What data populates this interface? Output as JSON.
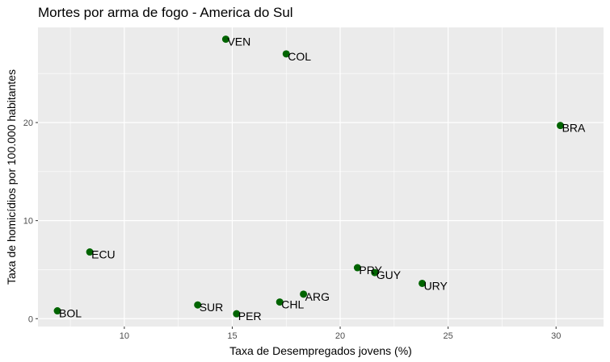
{
  "chart_data": {
    "type": "scatter",
    "title": "Mortes por arma de fogo - America do Sul",
    "xlabel": "Taxa de Desempregados jovens (%)",
    "ylabel": "Taxa de homicídios por 100.000 habitantes",
    "xlim": [
      6.0,
      32.2
    ],
    "ylim": [
      -0.8,
      29.7
    ],
    "x_ticks": [
      10,
      15,
      20,
      25,
      30
    ],
    "y_ticks": [
      0,
      10,
      20
    ],
    "x_tick_labels": [
      "10",
      "15",
      "20",
      "25",
      "30"
    ],
    "y_tick_labels": [
      "0",
      "10",
      "20"
    ],
    "grid": true,
    "legend": "none",
    "point_color": "#006400",
    "panel_color": "#ebebeb",
    "grid_color": "#ffffff",
    "points": [
      {
        "label": "VEN",
        "x": 14.7,
        "y": 28.5
      },
      {
        "label": "COL",
        "x": 17.5,
        "y": 27.0
      },
      {
        "label": "BRA",
        "x": 30.2,
        "y": 19.7
      },
      {
        "label": "ECU",
        "x": 8.4,
        "y": 6.8
      },
      {
        "label": "PRY",
        "x": 20.8,
        "y": 5.2
      },
      {
        "label": "GUY",
        "x": 21.6,
        "y": 4.7
      },
      {
        "label": "URY",
        "x": 23.8,
        "y": 3.6
      },
      {
        "label": "ARG",
        "x": 18.3,
        "y": 2.5
      },
      {
        "label": "CHL",
        "x": 17.2,
        "y": 1.7
      },
      {
        "label": "SUR",
        "x": 13.4,
        "y": 1.4
      },
      {
        "label": "PER",
        "x": 15.2,
        "y": 0.5
      },
      {
        "label": "BOL",
        "x": 6.9,
        "y": 0.8
      }
    ]
  }
}
